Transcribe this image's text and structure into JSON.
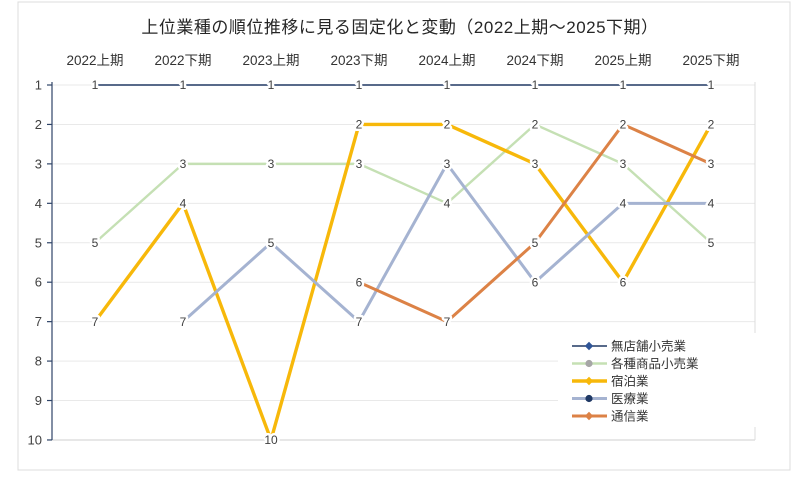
{
  "chart_data": {
    "type": "line",
    "title": "上位業種の順位推移に見る固定化と変動（2022上期～2025下期）",
    "subtitle": "",
    "categories": [
      "2022上期",
      "2022下期",
      "2023上期",
      "2023下期",
      "2024上期",
      "2024下期",
      "2025上期",
      "2025下期"
    ],
    "x_axis_position": "top",
    "y_axis": {
      "ticks": [
        1,
        2,
        3,
        4,
        5,
        6,
        7,
        8,
        9,
        10
      ],
      "range": [
        1,
        10
      ],
      "inverted": true,
      "meaning": "rank"
    },
    "grid": true,
    "legend_position": "inside-right-bottom",
    "series": [
      {
        "name": "無店舗小売業",
        "color": "#203864",
        "marker": "diamond",
        "marker_color": "#2F5597",
        "width": 1.6,
        "values": [
          1,
          1,
          1,
          1,
          1,
          1,
          1,
          1
        ]
      },
      {
        "name": "各種商品小売業",
        "color": "#C5E0B4",
        "marker": "circle",
        "marker_color": "#A6A6A6",
        "width": 2.4,
        "values": [
          5,
          3,
          3,
          3,
          4,
          2,
          3,
          5
        ]
      },
      {
        "name": "宿泊業",
        "color": "#F7B80A",
        "marker": "diamond",
        "marker_color": "#F7B80A",
        "width": 3.4,
        "values": [
          7,
          4,
          10,
          2,
          2,
          3,
          6,
          2
        ]
      },
      {
        "name": "医療業",
        "color": "#A5B3D1",
        "marker": "circle",
        "marker_color": "#1F3864",
        "width": 3.0,
        "values": [
          null,
          7,
          5,
          7,
          3,
          6,
          4,
          4
        ]
      },
      {
        "name": "通信業",
        "color": "#DC8246",
        "marker": "diamond",
        "marker_color": "#DC8246",
        "width": 3.0,
        "values": [
          null,
          null,
          null,
          6,
          7,
          5,
          2,
          3
        ]
      }
    ],
    "style_colors": {
      "grid": "#E9E9E9",
      "grid_bottom": "#CFCFCF",
      "axis": "#2F4468",
      "frame": "#DCDCDC",
      "data_label": "#404040"
    }
  }
}
